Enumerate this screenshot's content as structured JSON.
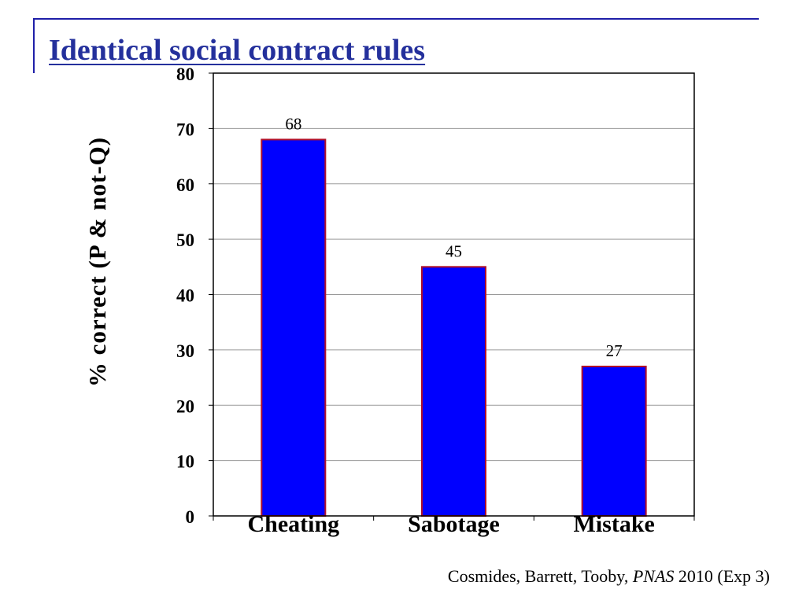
{
  "slide": {
    "title": "Identical social contract rules",
    "citation_authors": "Cosmides, Barrett, Tooby, ",
    "citation_journal": "PNAS",
    "citation_tail": " 2010 (Exp 3)"
  },
  "colors": {
    "bar_fill": "#0000ff",
    "bar_outline": "#b0102a",
    "title": "#24309c",
    "rule": "#1f1fa8",
    "grid": "#9a9a9a"
  },
  "chart_data": {
    "type": "bar",
    "title": "",
    "xlabel": "",
    "ylabel": "%  correct (P & not-Q)",
    "categories": [
      "Cheating",
      "Sabotage",
      "Mistake"
    ],
    "values": [
      68,
      45,
      27
    ],
    "data_labels": [
      "68",
      "45",
      "27"
    ],
    "ylim": [
      0,
      80
    ],
    "yticks": [
      0,
      10,
      20,
      30,
      40,
      50,
      60,
      70,
      80
    ],
    "grid": true,
    "legend": "none"
  }
}
